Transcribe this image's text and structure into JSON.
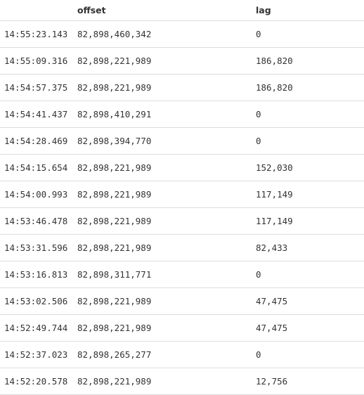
{
  "table": {
    "columns": [
      "",
      "offset",
      "lag"
    ],
    "rows": [
      {
        "time": "14:55:23.143",
        "offset": "82,898,460,342",
        "lag": "0"
      },
      {
        "time": "14:55:09.316",
        "offset": "82,898,221,989",
        "lag": "186,820"
      },
      {
        "time": "14:54:57.375",
        "offset": "82,898,221,989",
        "lag": "186,820"
      },
      {
        "time": "14:54:41.437",
        "offset": "82,898,410,291",
        "lag": "0"
      },
      {
        "time": "14:54:28.469",
        "offset": "82,898,394,770",
        "lag": "0"
      },
      {
        "time": "14:54:15.654",
        "offset": "82,898,221,989",
        "lag": "152,030"
      },
      {
        "time": "14:54:00.993",
        "offset": "82,898,221,989",
        "lag": "117,149"
      },
      {
        "time": "14:53:46.478",
        "offset": "82,898,221,989",
        "lag": "117,149"
      },
      {
        "time": "14:53:31.596",
        "offset": "82,898,221,989",
        "lag": "82,433"
      },
      {
        "time": "14:53:16.813",
        "offset": "82,898,311,771",
        "lag": "0"
      },
      {
        "time": "14:53:02.506",
        "offset": "82,898,221,989",
        "lag": "47,475"
      },
      {
        "time": "14:52:49.744",
        "offset": "82,898,221,989",
        "lag": "47,475"
      },
      {
        "time": "14:52:37.023",
        "offset": "82,898,265,277",
        "lag": "0"
      },
      {
        "time": "14:52:20.578",
        "offset": "82,898,221,989",
        "lag": "12,756"
      }
    ]
  }
}
